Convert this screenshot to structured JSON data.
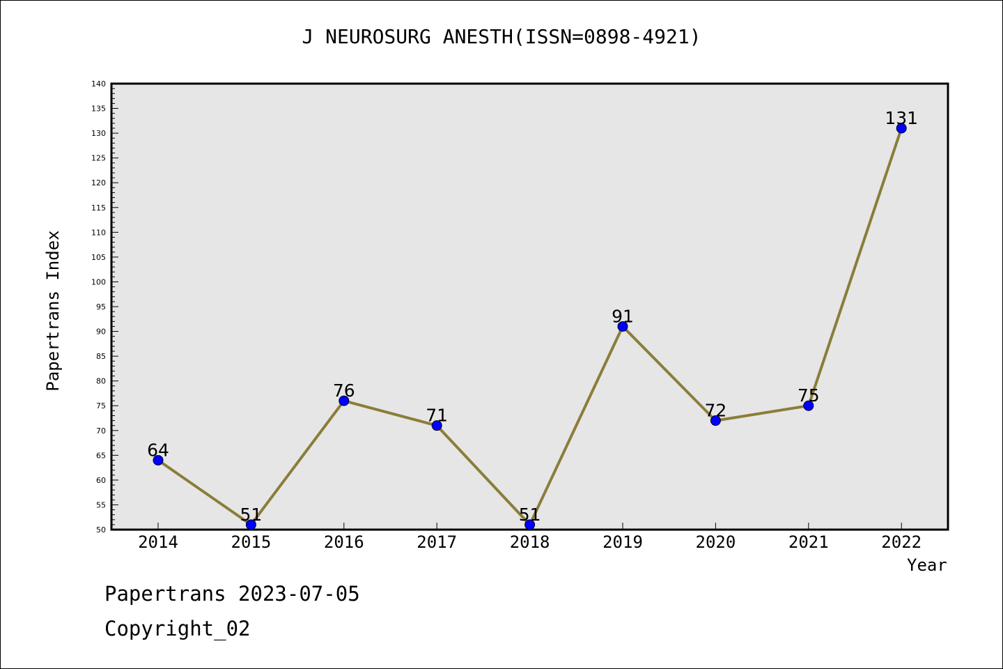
{
  "chart_data": {
    "type": "line",
    "title": "J NEUROSURG ANESTH(ISSN=0898-4921)",
    "xlabel": "Year",
    "ylabel": "Papertrans Index",
    "categories": [
      "2014",
      "2015",
      "2016",
      "2017",
      "2018",
      "2019",
      "2020",
      "2021",
      "2022"
    ],
    "values": [
      64,
      51,
      76,
      71,
      51,
      91,
      72,
      75,
      131
    ],
    "data_labels": [
      "64",
      "51",
      "76",
      "71",
      "51",
      "91",
      "72",
      "75",
      "131"
    ],
    "ylim": [
      50,
      140
    ],
    "yticks": [
      "50",
      "55",
      "60",
      "65",
      "70",
      "75",
      "80",
      "85",
      "90",
      "95",
      "100",
      "105",
      "110",
      "115",
      "120",
      "125",
      "130",
      "135",
      "140"
    ],
    "grid": false,
    "legend": "none",
    "colors": {
      "line": "#8b7d3a",
      "marker": "#0000ff",
      "plot_background": "#e6e6e6"
    }
  },
  "footer": {
    "date_line": "Papertrans 2023-07-05",
    "copyright": "Copyright_02"
  }
}
